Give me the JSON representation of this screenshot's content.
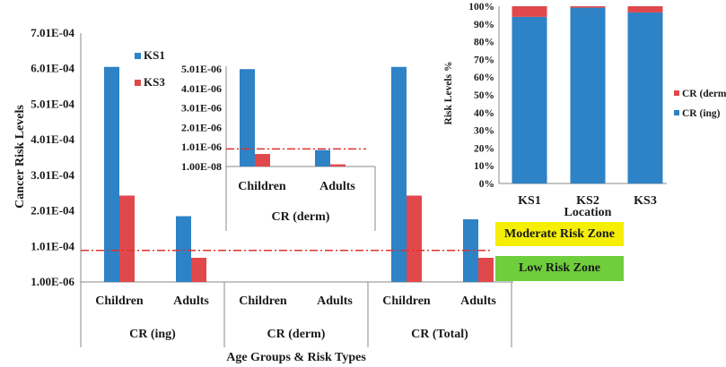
{
  "chart_data": [
    {
      "type": "bar",
      "title": "",
      "xlabel": "Age Groups & Risk Types",
      "ylabel": "Cancer Risk Levels",
      "ylim": [
        1e-06,
        0.000701
      ],
      "yticks": [
        "1.00E-06",
        "1.01E-04",
        "2.01E-04",
        "3.01E-04",
        "4.01E-04",
        "5.01E-04",
        "6.01E-04",
        "7.01E-04"
      ],
      "groups": [
        "CR (ing)",
        "CR (derm)",
        "CR (Total)"
      ],
      "categories": [
        "Children",
        "Adults",
        "Children",
        "Adults",
        "Children",
        "Adults"
      ],
      "series": [
        {
          "name": "KS1",
          "color": "#2e82c6",
          "values": [
            0.000606,
            0.000186,
            null,
            null,
            0.000606,
            0.000186
          ]
        },
        {
          "name": "KS3",
          "color": "#e0484c",
          "values": [
            0.000244,
            6.9e-05,
            null,
            null,
            0.000244,
            6.9e-05
          ]
        }
      ],
      "threshold": {
        "value": 8.97e-05,
        "color": "#e0302c",
        "style": "dash-dot"
      },
      "legend_position": "top-left",
      "zones": [
        {
          "label": "Moderate Risk Zone",
          "color": "#f5ee06"
        },
        {
          "label": "Low Risk Zone",
          "color": "#6fce3c"
        }
      ]
    },
    {
      "type": "bar",
      "title": "",
      "xlabel": "CR (derm)",
      "ylim": [
        1e-08,
        5.01e-06
      ],
      "yticks": [
        "1.00E-08",
        "1.01E-06",
        "2.01E-06",
        "3.01E-06",
        "4.01E-06",
        "5.01E-06"
      ],
      "categories": [
        "Children",
        "Adults"
      ],
      "series": [
        {
          "name": "KS1",
          "color": "#2e82c6",
          "values": [
            5e-06,
            8.5e-07
          ]
        },
        {
          "name": "KS3",
          "color": "#e0484c",
          "values": [
            6.5e-07,
            1.2e-07
          ]
        }
      ],
      "threshold": {
        "value": 9.1e-07,
        "color": "#e0302c",
        "style": "dash-dot"
      }
    },
    {
      "type": "bar",
      "stacked": true,
      "title": "",
      "xlabel": "Location",
      "ylabel": "Risk Levels %",
      "ylim": [
        0,
        100
      ],
      "yticks": [
        "0%",
        "10%",
        "20%",
        "30%",
        "40%",
        "50%",
        "60%",
        "70%",
        "80%",
        "90%",
        "100%"
      ],
      "categories": [
        "KS1",
        "KS2",
        "KS3"
      ],
      "series": [
        {
          "name": "CR (ing)",
          "color": "#2e82c6",
          "values": [
            94,
            99.2,
            96.5
          ]
        },
        {
          "name": "CR (derm)",
          "color": "#e0484c",
          "values": [
            6,
            0.8,
            3.5
          ]
        }
      ],
      "legend_position": "right"
    }
  ]
}
